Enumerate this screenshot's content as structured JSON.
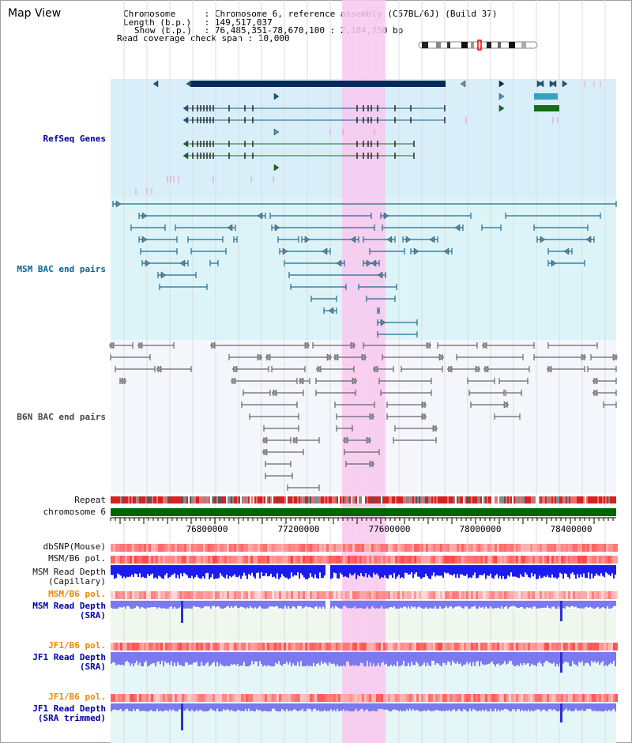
{
  "title": "Map View",
  "info": {
    "chromosome_label": "Chromosome",
    "chromosome_value": "Chromosome 6, reference assembly (C57BL/6J) (Build 37)",
    "length_label": "Length (b.p.)",
    "length_value": "149,517,037",
    "show_label": "Show (b.p.)",
    "show_value": "76,485,351-78,670,100 : 2,184,750 bp",
    "coverage_label": "Read coverage check span",
    "coverage_value": "10,000"
  },
  "tracks": {
    "refseq": "RefSeq Genes",
    "msm_bac": "MSM BAC end pairs",
    "b6n_bac": "B6N BAC end pairs",
    "repeat": "Repeat",
    "chromosome": "chromosome 6",
    "dbsnp": "dbSNP(Mouse)",
    "msm_b6_pol_1": "MSM/B6 pol.",
    "msm_read_depth_cap": "MSM Read Depth\n(Capillary)",
    "msm_b6_pol_2": "MSM/B6 pol.",
    "msm_read_depth_sra": "MSM Read Depth\n(SRA)",
    "jf1_b6_pol_1": "JF1/B6 pol.",
    "jf1_read_depth_sra": "JF1 Read Depth\n(SRA)",
    "jf1_b6_pol_2": "JF1/B6 pol.",
    "jf1_read_depth_trim": "JF1 Read Depth\n(SRA trimmed)"
  },
  "axis": {
    "ticks": [
      "76800000",
      "77200000",
      "77600000",
      "78000000",
      "78400000"
    ]
  },
  "colors": {
    "highlight": "#f9c8ee",
    "refseq_bg": "#d8effa",
    "msm_bg": "#dcf4f8",
    "gene_dark": "#002a5c",
    "gene_blue": "#1a5a8a",
    "gene_green": "#1a6a1a",
    "msm_pair": "#206a90",
    "b6n_pair": "#666666",
    "chromosome": "#006600",
    "depth_blue": "#1c1cf0",
    "depth_light": "#7a7aee"
  }
}
